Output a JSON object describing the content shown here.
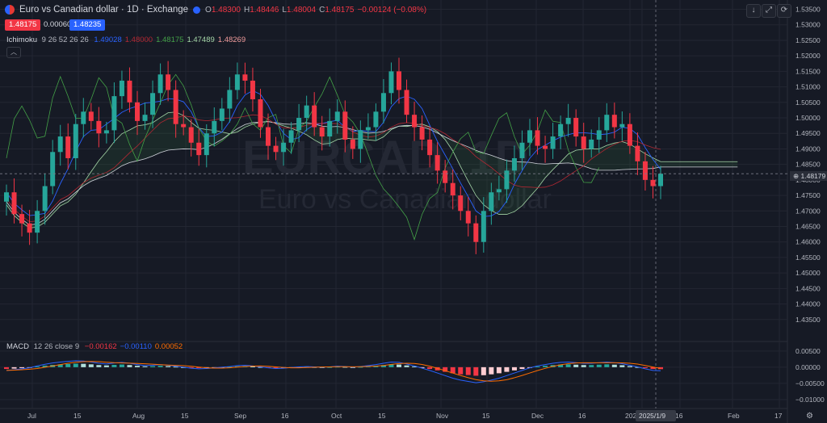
{
  "header": {
    "title": "Euro vs Canadian dollar · 1D · Exchange",
    "ohlc": [
      {
        "k": "O",
        "v": "1.48300"
      },
      {
        "k": "H",
        "v": "1.48446"
      },
      {
        "k": "L",
        "v": "1.48004"
      },
      {
        "k": "C",
        "v": "1.48175"
      },
      {
        "k": "",
        "v": "−0.00124 (−0.08%)"
      }
    ],
    "bid": "1.48175",
    "spread": "0.00060",
    "ask": "1.48235"
  },
  "ichimoku": {
    "name": "Ichimoku",
    "params": "9 26 52 26 26",
    "values": [
      {
        "v": "1.49028",
        "color": "#2962ff"
      },
      {
        "v": "1.48000",
        "color": "#b22833"
      },
      {
        "v": "1.48175",
        "color": "#43a047"
      },
      {
        "v": "1.47489",
        "color": "#a5d6a7"
      },
      {
        "v": "1.48269",
        "color": "#ef9a9a"
      }
    ]
  },
  "macd": {
    "name": "MACD",
    "params": "12 26 close 9",
    "values": [
      {
        "v": "−0.00162",
        "color": "#f23645"
      },
      {
        "v": "−0.00110",
        "color": "#2962ff"
      },
      {
        "v": "0.00052",
        "color": "#ff6d00"
      }
    ]
  },
  "watermark": {
    "symbol": "EURCAD, 1D",
    "name": "Euro vs Canadian dollar"
  },
  "collapse_icon": "chevron-up-icon",
  "toolbar": [
    "arrow-down-icon",
    "fullscreen-icon",
    "refresh-icon"
  ],
  "price_axis": {
    "ticks": [
      "1.53500",
      "1.53000",
      "1.52500",
      "1.52000",
      "1.51500",
      "1.51000",
      "1.50500",
      "1.50000",
      "1.49500",
      "1.49000",
      "1.48500",
      "1.48000",
      "1.47500",
      "1.47000",
      "1.46500",
      "1.46000",
      "1.45500",
      "1.45000",
      "1.44500",
      "1.44000",
      "1.43500"
    ],
    "current": "1.48179"
  },
  "macd_axis": {
    "ticks": [
      "0.00500",
      "0.00000",
      "−0.00500",
      "−0.01000"
    ]
  },
  "time_axis": {
    "labels": [
      "Jul",
      "15",
      "Aug",
      "15",
      "Sep",
      "16",
      "Oct",
      "15",
      "Nov",
      "15",
      "Dec",
      "16",
      "2025",
      "1/9",
      "16",
      "Feb",
      "17"
    ],
    "crosshair": "2025/1/9"
  },
  "colors": {
    "up": "#26a69a",
    "down": "#f23645",
    "bg": "#161a25",
    "grid": "#232632"
  },
  "chart_data": [
    {
      "type": "candlestick",
      "title": "Euro vs Canadian dollar · 1D · Exchange",
      "ylim": [
        1.43,
        1.538
      ],
      "last": {
        "open": 1.483,
        "high": 1.48446,
        "low": 1.48004,
        "close": 1.48175
      },
      "closes": [
        1.476,
        1.469,
        1.466,
        1.463,
        1.47,
        1.478,
        1.489,
        1.494,
        1.487,
        1.498,
        1.502,
        1.499,
        1.495,
        1.496,
        1.507,
        1.512,
        1.505,
        1.499,
        1.501,
        1.508,
        1.514,
        1.509,
        1.498,
        1.497,
        1.492,
        1.488,
        1.495,
        1.499,
        1.503,
        1.509,
        1.514,
        1.512,
        1.506,
        1.497,
        1.491,
        1.489,
        1.492,
        1.496,
        1.5,
        1.504,
        1.497,
        1.494,
        1.499,
        1.502,
        1.493,
        1.49,
        1.496,
        1.497,
        1.502,
        1.508,
        1.515,
        1.509,
        1.501,
        1.497,
        1.493,
        1.488,
        1.483,
        1.479,
        1.475,
        1.47,
        1.466,
        1.46,
        1.47,
        1.476,
        1.477,
        1.483,
        1.487,
        1.492,
        1.496,
        1.491,
        1.49,
        1.494,
        1.498,
        1.5,
        1.494,
        1.49,
        1.493,
        1.496,
        1.501,
        1.497,
        1.498,
        1.491,
        1.486,
        1.48,
        1.478,
        1.482
      ]
    },
    {
      "type": "bar",
      "title": "MACD 12 26 close 9",
      "series": [
        {
          "name": "MACD",
          "values": [
            -0.001,
            -0.0008,
            -0.0005,
            -0.0002,
            0.0004,
            0.0009,
            0.0013,
            0.0016,
            0.0018,
            0.002,
            0.0019,
            0.0016,
            0.0012,
            0.001,
            0.0013,
            0.0015,
            0.0012,
            0.0008,
            0.0005,
            0.0006,
            0.0008,
            0.0006,
            0.0003,
            0.0,
            -0.0003,
            -0.0005,
            -0.0004,
            -0.0002,
            0.0,
            0.0002,
            0.0005,
            0.0006,
            0.0004,
            0.0001,
            -0.0002,
            -0.0004,
            -0.0003,
            -0.0001,
            0.0001,
            0.0002,
            0.0001,
            0.0,
            0.0001,
            0.0003,
            0.0002,
            0.0,
            0.0002,
            0.0005,
            0.0008,
            0.0012,
            0.0016,
            0.0015,
            0.001,
            0.0004,
            -0.0003,
            -0.001,
            -0.0018,
            -0.0026,
            -0.0034,
            -0.004,
            -0.0044,
            -0.0048,
            -0.0045,
            -0.004,
            -0.0034,
            -0.0026,
            -0.0018,
            -0.001,
            -0.0002,
            0.0004,
            0.0008,
            0.0012,
            0.0015,
            0.0016,
            0.0014,
            0.0012,
            0.0012,
            0.0014,
            0.0016,
            0.0014,
            0.0011,
            0.0006,
            0.0001,
            -0.0005,
            -0.001,
            -0.0011
          ]
        }
      ],
      "ylim": [
        -0.0125,
        0.0062
      ]
    }
  ]
}
